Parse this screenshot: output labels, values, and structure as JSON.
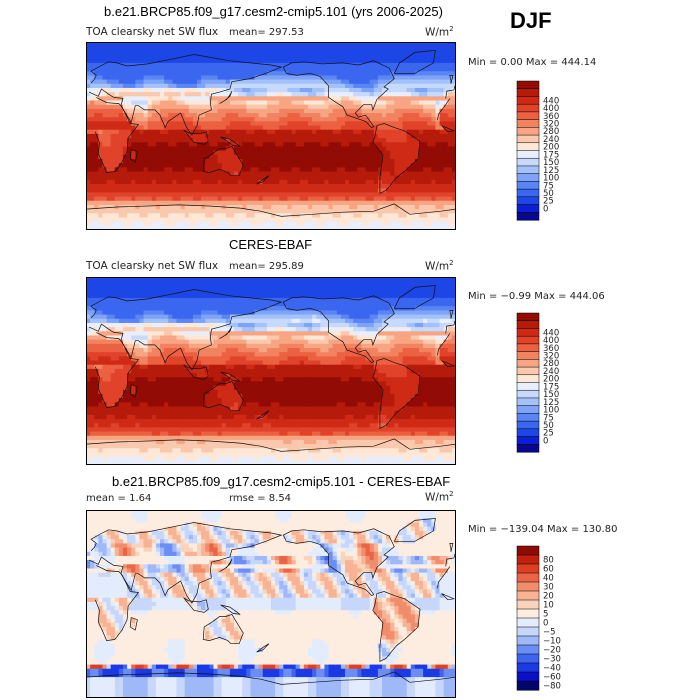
{
  "season": "DJF",
  "units_base": "W/m",
  "units_exp": "2",
  "colors": {
    "seq": [
      "#08088f",
      "#0a1fd6",
      "#1d46e6",
      "#3a66f0",
      "#5a85f5",
      "#7ea3f7",
      "#a4c2fa",
      "#c8dafb",
      "#e9eefc",
      "#fde7d6",
      "#fac8ac",
      "#f7a583",
      "#f28361",
      "#ec6142",
      "#e0432a",
      "#cf2a16",
      "#b51a0a",
      "#930b05"
    ],
    "diff": [
      "#04056b",
      "#0a10c8",
      "#1b3ae6",
      "#3e64f0",
      "#6a8ef6",
      "#9fb8f8",
      "#c6d7fb",
      "#e3ecfc",
      "#fdece0",
      "#fbd3bb",
      "#f8b294",
      "#f18d6b",
      "#ea6445",
      "#dc3f24",
      "#c1210d",
      "#8f0a03"
    ]
  },
  "chart_data": [
    {
      "type": "heatmap",
      "title": "b.e21.BRCP85.f09_g17.cesm2-cmip5.101 (yrs 2006-2025)",
      "subtitle": "TOA clearsky net SW flux",
      "mean_text": "mean= 297.53",
      "minmax_text": "Min =    0.00 Max = 444.14",
      "mean": 297.53,
      "min": 0.0,
      "max": 444.14,
      "levels": [
        0,
        25,
        50,
        75,
        100,
        125,
        150,
        175,
        200,
        240,
        280,
        320,
        360,
        400,
        440
      ],
      "level_labels": [
        "440",
        "400",
        "360",
        "320",
        "280",
        "240",
        "200",
        "175",
        "150",
        "125",
        "100",
        "75",
        "50",
        "25",
        "0"
      ],
      "lat_range": [
        -90,
        90
      ],
      "lon_range": [
        0,
        360
      ]
    },
    {
      "type": "heatmap",
      "title": "CERES-EBAF",
      "subtitle": "TOA clearsky net SW flux",
      "mean_text": "mean= 295.89",
      "minmax_text": "Min = −0.99 Max = 444.06",
      "mean": 295.89,
      "min": -0.99,
      "max": 444.06,
      "levels": [
        0,
        25,
        50,
        75,
        100,
        125,
        150,
        175,
        200,
        240,
        280,
        320,
        360,
        400,
        440
      ],
      "level_labels": [
        "440",
        "400",
        "360",
        "320",
        "280",
        "240",
        "200",
        "175",
        "150",
        "125",
        "100",
        "75",
        "50",
        "25",
        "0"
      ],
      "lat_range": [
        -90,
        90
      ],
      "lon_range": [
        0,
        360
      ]
    },
    {
      "type": "heatmap",
      "title": "b.e21.BRCP85.f09_g17.cesm2-cmip5.101 - CERES-EBAF",
      "mean_text": "mean =    1.64",
      "rmse_text": "rmse =    8.54",
      "mean": 1.64,
      "rmse": 8.54,
      "min": -139.04,
      "max": 130.8,
      "minmax_text": "Min = −139.04 Max = 130.80",
      "levels": [
        -80,
        -60,
        -40,
        -30,
        -20,
        -10,
        -5,
        0,
        5,
        10,
        20,
        30,
        40,
        60,
        80
      ],
      "level_labels": [
        "80",
        "60",
        "40",
        "30",
        "20",
        "10",
        "5",
        "0",
        "−5",
        "−10",
        "−20",
        "−30",
        "−40",
        "−60",
        "−80"
      ],
      "lat_range": [
        -90,
        90
      ],
      "lon_range": [
        0,
        360
      ]
    }
  ]
}
